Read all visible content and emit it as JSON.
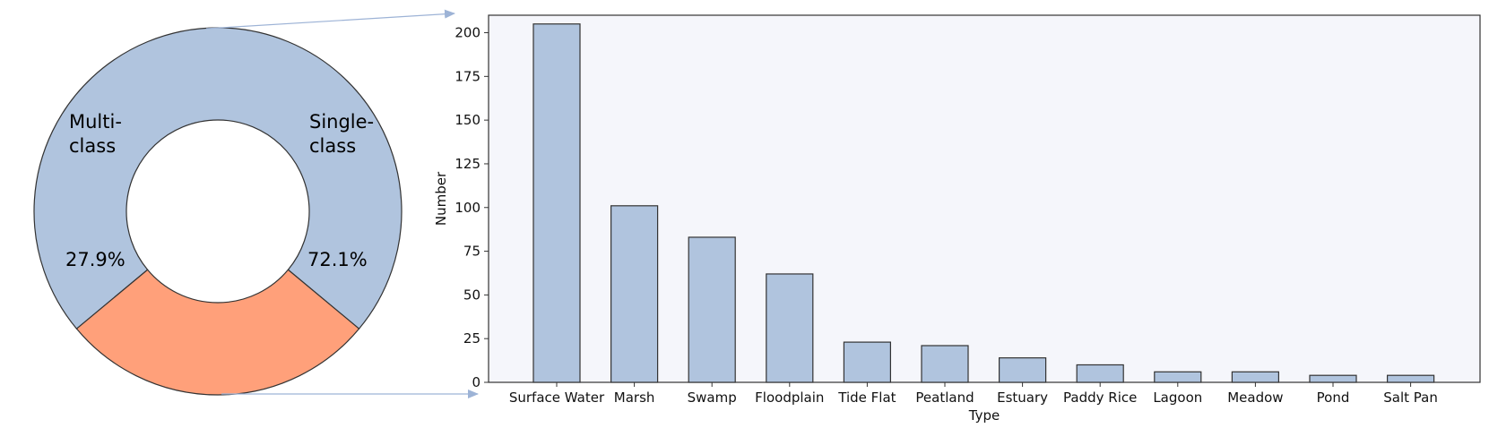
{
  "chart_data": [
    {
      "type": "pie",
      "donut": true,
      "slices": [
        {
          "label_lines": [
            "Single-",
            "class"
          ],
          "value": 72.1,
          "value_label": "72.1%",
          "color": "#B0C4DE"
        },
        {
          "label_lines": [
            "Multi-",
            "class"
          ],
          "value": 27.9,
          "value_label": "27.9%",
          "color": "#FFA07A"
        }
      ]
    },
    {
      "type": "bar",
      "xlabel": "Type",
      "ylabel": "Number",
      "ylim": [
        0,
        210
      ],
      "yticks": [
        0,
        25,
        50,
        75,
        100,
        125,
        150,
        175,
        200
      ],
      "categories": [
        "Surface Water",
        "Marsh",
        "Swamp",
        "Floodplain",
        "Tide Flat",
        "Peatland",
        "Estuary",
        "Paddy Rice",
        "Lagoon",
        "Meadow",
        "Pond",
        "Salt Pan"
      ],
      "values": [
        205,
        101,
        83,
        62,
        23,
        21,
        14,
        10,
        6,
        6,
        4,
        4
      ],
      "bar_color": "#B0C4DE",
      "edge_color": "#333333",
      "plot_background": "#F5F6FB"
    }
  ],
  "connector_color": "#9DB3D6"
}
